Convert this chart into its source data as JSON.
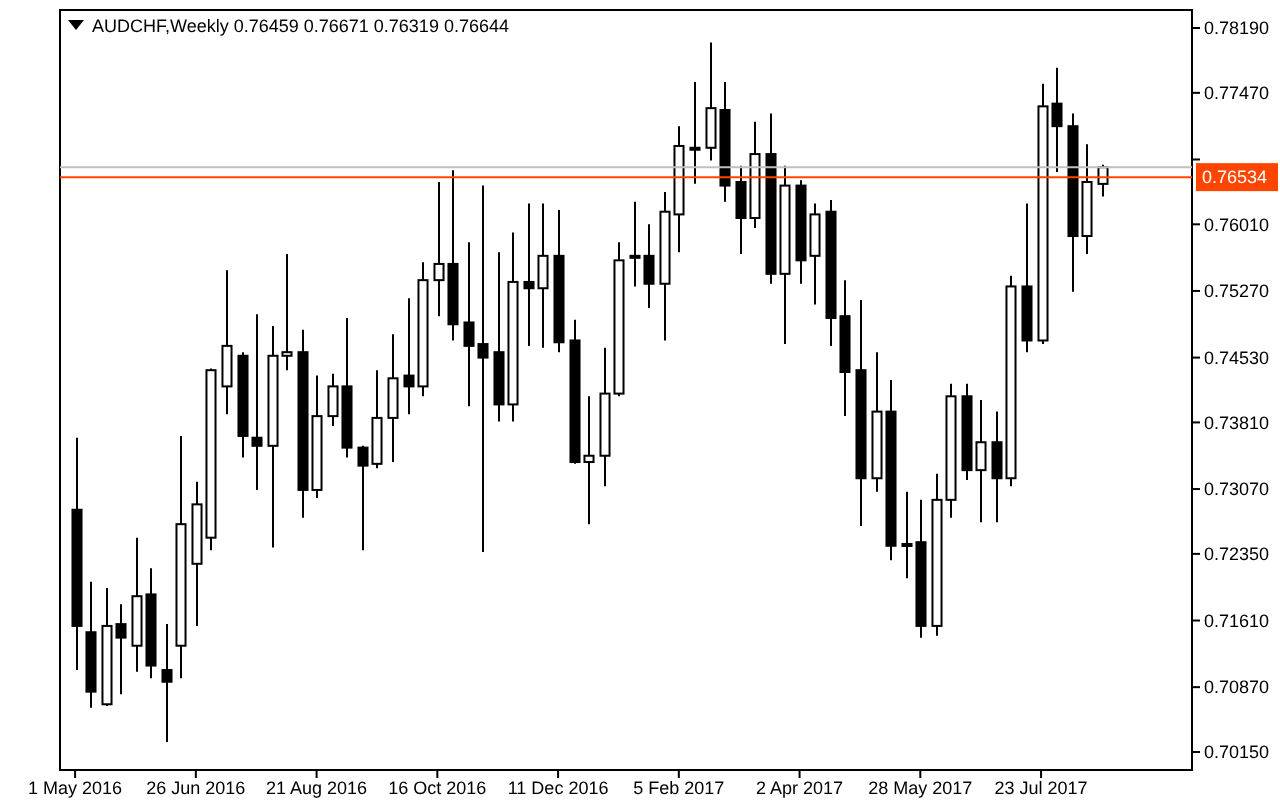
{
  "chart_data": {
    "type": "candlestick",
    "title": "AUDCHF,Weekly  0.76459 0.76671 0.76319 0.76644",
    "x": [
      "2016-05-01",
      "2016-05-08",
      "2016-05-15",
      "2016-05-22",
      "2016-05-29",
      "2016-06-05",
      "2016-06-12",
      "2016-06-19",
      "2016-06-26",
      "2016-07-03",
      "2016-07-10",
      "2016-07-17",
      "2016-07-24",
      "2016-07-31",
      "2016-08-07",
      "2016-08-14",
      "2016-08-21",
      "2016-08-28",
      "2016-09-04",
      "2016-09-11",
      "2016-09-18",
      "2016-09-25",
      "2016-10-02",
      "2016-10-09",
      "2016-10-16",
      "2016-10-23",
      "2016-10-30",
      "2016-11-06",
      "2016-11-13",
      "2016-11-20",
      "2016-11-27",
      "2016-12-04",
      "2016-12-11",
      "2016-12-18",
      "2016-12-25",
      "2017-01-01",
      "2017-01-08",
      "2017-01-15",
      "2017-01-22",
      "2017-01-29",
      "2017-02-05",
      "2017-02-12",
      "2017-02-19",
      "2017-02-26",
      "2017-03-05",
      "2017-03-12",
      "2017-03-19",
      "2017-03-26",
      "2017-04-02",
      "2017-04-09",
      "2017-04-16",
      "2017-04-23",
      "2017-04-30",
      "2017-05-07",
      "2017-05-14",
      "2017-05-21",
      "2017-05-28",
      "2017-06-04",
      "2017-06-11",
      "2017-06-18",
      "2017-06-25",
      "2017-07-02",
      "2017-07-09",
      "2017-07-16",
      "2017-07-23",
      "2017-07-30",
      "2017-08-06",
      "2017-08-13",
      "2017-08-20"
    ],
    "ohlc": [
      [
        0.7284,
        0.7364,
        0.7106,
        0.7155
      ],
      [
        0.7148,
        0.7204,
        0.7064,
        0.7082
      ],
      [
        0.7068,
        0.7197,
        0.7066,
        0.7155
      ],
      [
        0.7157,
        0.7179,
        0.7079,
        0.7142
      ],
      [
        0.7133,
        0.7253,
        0.7104,
        0.7188
      ],
      [
        0.719,
        0.7219,
        0.7097,
        0.7111
      ],
      [
        0.7106,
        0.7157,
        0.7026,
        0.7093
      ],
      [
        0.7133,
        0.7366,
        0.7097,
        0.7268
      ],
      [
        0.7224,
        0.7315,
        0.7155,
        0.729
      ],
      [
        0.7253,
        0.7441,
        0.7239,
        0.7439
      ],
      [
        0.7421,
        0.755,
        0.739,
        0.7466
      ],
      [
        0.7455,
        0.7459,
        0.7342,
        0.7366
      ],
      [
        0.7364,
        0.7501,
        0.7306,
        0.7355
      ],
      [
        0.7355,
        0.7488,
        0.7242,
        0.7455
      ],
      [
        0.7455,
        0.7568,
        0.7439,
        0.7459
      ],
      [
        0.7459,
        0.7484,
        0.7275,
        0.7306
      ],
      [
        0.7306,
        0.7433,
        0.7297,
        0.7388
      ],
      [
        0.7388,
        0.7435,
        0.7377,
        0.7421
      ],
      [
        0.7421,
        0.7497,
        0.7342,
        0.7353
      ],
      [
        0.7353,
        0.7355,
        0.7239,
        0.7333
      ],
      [
        0.7335,
        0.7439,
        0.733,
        0.7386
      ],
      [
        0.7386,
        0.7479,
        0.7337,
        0.743
      ],
      [
        0.7433,
        0.7519,
        0.739,
        0.7421
      ],
      [
        0.7421,
        0.7559,
        0.741,
        0.7539
      ],
      [
        0.7539,
        0.7648,
        0.7499,
        0.7557
      ],
      [
        0.7557,
        0.7661,
        0.7472,
        0.749
      ],
      [
        0.7492,
        0.7581,
        0.7399,
        0.7466
      ],
      [
        0.7468,
        0.7644,
        0.7237,
        0.7453
      ],
      [
        0.7459,
        0.757,
        0.7382,
        0.7401
      ],
      [
        0.7401,
        0.7592,
        0.7382,
        0.7537
      ],
      [
        0.7537,
        0.7624,
        0.7466,
        0.753
      ],
      [
        0.753,
        0.7624,
        0.7464,
        0.7566
      ],
      [
        0.7566,
        0.7617,
        0.7459,
        0.747
      ],
      [
        0.7472,
        0.7495,
        0.7335,
        0.7337
      ],
      [
        0.7337,
        0.741,
        0.7268,
        0.7344
      ],
      [
        0.7344,
        0.7464,
        0.731,
        0.7413
      ],
      [
        0.7413,
        0.7581,
        0.741,
        0.7561
      ],
      [
        0.7566,
        0.7626,
        0.7532,
        0.7564
      ],
      [
        0.7566,
        0.7601,
        0.7508,
        0.7535
      ],
      [
        0.7535,
        0.7637,
        0.7472,
        0.7615
      ],
      [
        0.7612,
        0.771,
        0.757,
        0.7688
      ],
      [
        0.7686,
        0.7759,
        0.7646,
        0.7684
      ],
      [
        0.7686,
        0.7803,
        0.7672,
        0.773
      ],
      [
        0.7728,
        0.7759,
        0.7626,
        0.7644
      ],
      [
        0.7648,
        0.7666,
        0.7568,
        0.7608
      ],
      [
        0.7608,
        0.7715,
        0.7597,
        0.7679
      ],
      [
        0.7679,
        0.7724,
        0.7535,
        0.7546
      ],
      [
        0.7546,
        0.7666,
        0.7468,
        0.7644
      ],
      [
        0.7644,
        0.765,
        0.7535,
        0.7561
      ],
      [
        0.7566,
        0.7624,
        0.7512,
        0.7612
      ],
      [
        0.7615,
        0.7628,
        0.7466,
        0.7497
      ],
      [
        0.7499,
        0.7539,
        0.7388,
        0.7437
      ],
      [
        0.7439,
        0.7517,
        0.7266,
        0.7319
      ],
      [
        0.7319,
        0.7459,
        0.7304,
        0.7393
      ],
      [
        0.7393,
        0.7428,
        0.7228,
        0.7244
      ],
      [
        0.7246,
        0.7304,
        0.7208,
        0.7244
      ],
      [
        0.7248,
        0.7295,
        0.7142,
        0.7155
      ],
      [
        0.7155,
        0.7324,
        0.7144,
        0.7295
      ],
      [
        0.7295,
        0.7424,
        0.7275,
        0.741
      ],
      [
        0.741,
        0.7424,
        0.7317,
        0.7328
      ],
      [
        0.7328,
        0.7406,
        0.727,
        0.7359
      ],
      [
        0.7359,
        0.7393,
        0.727,
        0.7319
      ],
      [
        0.7319,
        0.7544,
        0.731,
        0.7532
      ],
      [
        0.7532,
        0.7624,
        0.7459,
        0.7472
      ],
      [
        0.7472,
        0.7757,
        0.7468,
        0.7732
      ],
      [
        0.7735,
        0.7775,
        0.7659,
        0.771
      ],
      [
        0.771,
        0.7724,
        0.7526,
        0.7588
      ],
      [
        0.7588,
        0.769,
        0.7568,
        0.7648
      ],
      [
        0.76459,
        0.76671,
        0.76319,
        0.76644
      ]
    ],
    "xlim": [
      "2016-04-24",
      "2017-10-01"
    ],
    "xticks": [
      {
        "value": "2016-05-01",
        "label": "1 May 2016"
      },
      {
        "value": "2016-06-26",
        "label": "26 Jun 2016"
      },
      {
        "value": "2016-08-21",
        "label": "21 Aug 2016"
      },
      {
        "value": "2016-10-16",
        "label": "16 Oct 2016"
      },
      {
        "value": "2016-12-11",
        "label": "11 Dec 2016"
      },
      {
        "value": "2017-02-05",
        "label": "5 Feb 2017"
      },
      {
        "value": "2017-04-02",
        "label": "2 Apr 2017"
      },
      {
        "value": "2017-05-28",
        "label": "28 May 2017"
      },
      {
        "value": "2017-07-23",
        "label": "23 Jul 2017"
      }
    ],
    "ylim": [
      0.6995,
      0.7839
    ],
    "yticks": [
      {
        "value": 0.7819,
        "label": "0.78190"
      },
      {
        "value": 0.7747,
        "label": "0.77470"
      },
      {
        "value": 0.7673,
        "label": null
      },
      {
        "value": 0.7601,
        "label": "0.76010"
      },
      {
        "value": 0.7527,
        "label": "0.75270"
      },
      {
        "value": 0.7453,
        "label": "0.74530"
      },
      {
        "value": 0.7381,
        "label": "0.73810"
      },
      {
        "value": 0.7307,
        "label": "0.73070"
      },
      {
        "value": 0.7235,
        "label": "0.72350"
      },
      {
        "value": 0.7161,
        "label": "0.71610"
      },
      {
        "value": 0.7087,
        "label": "0.70870"
      },
      {
        "value": 0.7015,
        "label": "0.70150"
      }
    ],
    "ref_lines": [
      {
        "axis": "y",
        "value": 0.76644,
        "color": "#c0c0c0"
      },
      {
        "axis": "y",
        "value": 0.76534,
        "label": "0.76534",
        "color": "#ff4500"
      }
    ]
  }
}
